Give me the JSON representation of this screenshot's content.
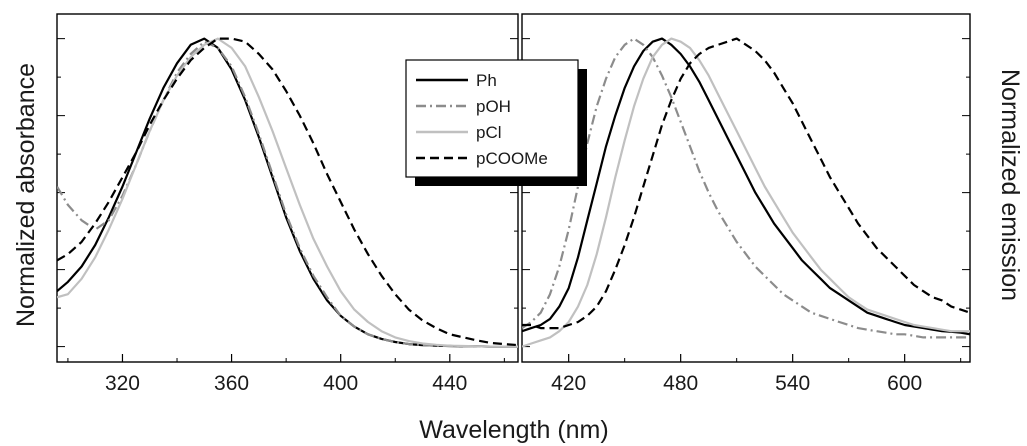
{
  "chart_data": {
    "type": "line",
    "title": "",
    "xlabel": "Wavelength (nm)",
    "legend": {
      "placement": "top-center",
      "shadow": true
    },
    "series_styles": [
      {
        "name": "Ph",
        "color": "#000000",
        "dash": "solid"
      },
      {
        "name": "pOH",
        "color": "#8c8c8c",
        "dash": "dashdot"
      },
      {
        "name": "pCl",
        "color": "#c0c0c0",
        "dash": "solid"
      },
      {
        "name": "pCOOMe",
        "color": "#000000",
        "dash": "dashed"
      }
    ],
    "panels": [
      {
        "id": "absorbance",
        "ylabel": "Normalized absorbance",
        "xlim": [
          296,
          465
        ],
        "ylim": [
          -0.05,
          1.08
        ],
        "xticks": [
          320,
          360,
          400,
          440
        ],
        "x_tick_labels": [
          "320",
          "360",
          "400",
          "440"
        ],
        "y_tick_labels_shown": false,
        "x": [
          296,
          300,
          305,
          310,
          315,
          320,
          325,
          330,
          335,
          340,
          345,
          350,
          355,
          360,
          365,
          370,
          375,
          380,
          385,
          390,
          395,
          400,
          405,
          410,
          415,
          420,
          425,
          430,
          435,
          440,
          445,
          450,
          455,
          460,
          465
        ],
        "series": [
          {
            "name": "Ph",
            "values": [
              0.18,
              0.21,
              0.26,
              0.33,
              0.42,
              0.52,
              0.63,
              0.74,
              0.84,
              0.92,
              0.98,
              1.0,
              0.97,
              0.9,
              0.8,
              0.68,
              0.55,
              0.42,
              0.31,
              0.22,
              0.15,
              0.1,
              0.065,
              0.04,
              0.025,
              0.015,
              0.008,
              0.005,
              0.003,
              0.002,
              0.001,
              0.001,
              0.0,
              0.0,
              0.0
            ]
          },
          {
            "name": "pOH",
            "values": [
              0.52,
              0.46,
              0.41,
              0.38,
              0.41,
              0.49,
              0.59,
              0.7,
              0.8,
              0.89,
              0.95,
              0.99,
              0.97,
              0.91,
              0.81,
              0.69,
              0.56,
              0.43,
              0.32,
              0.23,
              0.16,
              0.1,
              0.065,
              0.04,
              0.025,
              0.015,
              0.008,
              0.005,
              0.003,
              0.002,
              0.001,
              0.001,
              0.0,
              0.0,
              0.0
            ]
          },
          {
            "name": "pCl",
            "values": [
              0.16,
              0.17,
              0.22,
              0.29,
              0.38,
              0.48,
              0.59,
              0.7,
              0.8,
              0.88,
              0.94,
              0.98,
              1.0,
              0.97,
              0.91,
              0.81,
              0.7,
              0.58,
              0.46,
              0.35,
              0.26,
              0.18,
              0.12,
              0.08,
              0.05,
              0.03,
              0.018,
              0.01,
              0.006,
              0.003,
              0.002,
              0.001,
              0.0,
              0.0,
              0.0
            ]
          },
          {
            "name": "pCOOMe",
            "values": [
              0.28,
              0.3,
              0.34,
              0.4,
              0.47,
              0.55,
              0.63,
              0.72,
              0.8,
              0.87,
              0.93,
              0.97,
              1.0,
              1.0,
              0.99,
              0.95,
              0.9,
              0.83,
              0.75,
              0.66,
              0.56,
              0.47,
              0.38,
              0.3,
              0.23,
              0.17,
              0.12,
              0.085,
              0.06,
              0.04,
              0.03,
              0.02,
              0.012,
              0.008,
              0.005
            ]
          }
        ]
      },
      {
        "id": "emission",
        "ylabel": "Normalized emission",
        "ylabel_side": "right",
        "xlim": [
          395,
          635
        ],
        "ylim": [
          -0.05,
          1.08
        ],
        "xticks": [
          420,
          480,
          540,
          600
        ],
        "x_tick_labels": [
          "420",
          "480",
          "540",
          "600"
        ],
        "y_tick_labels_shown": false,
        "x": [
          395,
          400,
          405,
          410,
          415,
          420,
          425,
          430,
          435,
          440,
          445,
          450,
          455,
          460,
          465,
          470,
          475,
          480,
          485,
          490,
          495,
          500,
          505,
          510,
          515,
          520,
          525,
          530,
          535,
          540,
          545,
          550,
          555,
          560,
          565,
          570,
          575,
          580,
          585,
          590,
          595,
          600,
          605,
          610,
          615,
          620,
          625,
          630,
          635
        ],
        "series": [
          {
            "name": "Ph",
            "values": [
              0.05,
              0.06,
              0.07,
              0.09,
              0.13,
              0.19,
              0.29,
              0.41,
              0.53,
              0.65,
              0.75,
              0.84,
              0.91,
              0.96,
              0.99,
              1.0,
              0.98,
              0.95,
              0.91,
              0.86,
              0.8,
              0.74,
              0.68,
              0.62,
              0.56,
              0.5,
              0.45,
              0.4,
              0.36,
              0.32,
              0.28,
              0.25,
              0.22,
              0.19,
              0.17,
              0.15,
              0.13,
              0.11,
              0.1,
              0.09,
              0.08,
              0.07,
              0.065,
              0.06,
              0.055,
              0.05,
              0.048,
              0.045,
              0.04
            ]
          },
          {
            "name": "pOH",
            "values": [
              0.06,
              0.08,
              0.11,
              0.17,
              0.26,
              0.38,
              0.52,
              0.66,
              0.78,
              0.87,
              0.94,
              0.98,
              1.0,
              0.98,
              0.94,
              0.88,
              0.81,
              0.73,
              0.65,
              0.57,
              0.5,
              0.44,
              0.39,
              0.34,
              0.3,
              0.26,
              0.23,
              0.2,
              0.17,
              0.15,
              0.13,
              0.11,
              0.1,
              0.09,
              0.08,
              0.07,
              0.06,
              0.055,
              0.05,
              0.045,
              0.04,
              0.04,
              0.035,
              0.03,
              0.03,
              0.03,
              0.03,
              0.03,
              0.03
            ]
          },
          {
            "name": "pCl",
            "values": [
              0.0,
              0.01,
              0.02,
              0.03,
              0.05,
              0.08,
              0.13,
              0.2,
              0.3,
              0.42,
              0.55,
              0.67,
              0.78,
              0.87,
              0.94,
              0.98,
              1.0,
              0.99,
              0.97,
              0.93,
              0.88,
              0.82,
              0.76,
              0.7,
              0.64,
              0.58,
              0.52,
              0.47,
              0.42,
              0.37,
              0.33,
              0.29,
              0.25,
              0.22,
              0.19,
              0.16,
              0.14,
              0.12,
              0.11,
              0.1,
              0.09,
              0.08,
              0.07,
              0.065,
              0.06,
              0.055,
              0.05,
              0.05,
              0.05
            ]
          },
          {
            "name": "pCOOMe",
            "values": [
              0.07,
              0.07,
              0.06,
              0.06,
              0.06,
              0.07,
              0.08,
              0.1,
              0.13,
              0.18,
              0.25,
              0.33,
              0.42,
              0.52,
              0.62,
              0.72,
              0.8,
              0.87,
              0.92,
              0.95,
              0.97,
              0.98,
              0.99,
              1.0,
              0.98,
              0.96,
              0.93,
              0.89,
              0.84,
              0.79,
              0.73,
              0.67,
              0.61,
              0.55,
              0.5,
              0.45,
              0.4,
              0.36,
              0.32,
              0.29,
              0.26,
              0.23,
              0.2,
              0.18,
              0.16,
              0.15,
              0.13,
              0.12,
              0.11
            ]
          }
        ]
      }
    ]
  }
}
